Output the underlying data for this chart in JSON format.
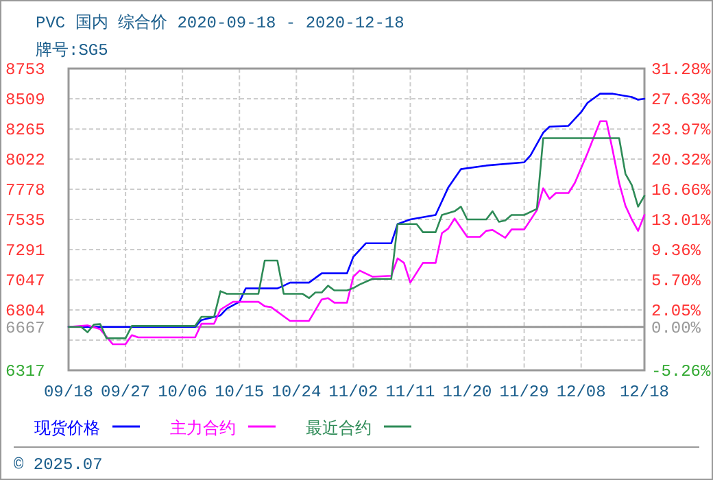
{
  "chart_data": {
    "type": "line",
    "title": "PVC 国内 综合价 2020-09-18 - 2020-12-18",
    "subtitle": "牌号:SG5",
    "xlim": [
      "2020-09-18",
      "2020-12-18"
    ],
    "xticks": [
      {
        "value": "2020-09-18",
        "label": "09/18"
      },
      {
        "value": "2020-09-27",
        "label": "09/27"
      },
      {
        "value": "2020-10-06",
        "label": "10/06"
      },
      {
        "value": "2020-10-15",
        "label": "10/15"
      },
      {
        "value": "2020-10-24",
        "label": "10/24"
      },
      {
        "value": "2020-11-02",
        "label": "11/02"
      },
      {
        "value": "2020-11-11",
        "label": "11/11"
      },
      {
        "value": "2020-11-20",
        "label": "11/20"
      },
      {
        "value": "2020-11-29",
        "label": "11/29"
      },
      {
        "value": "2020-12-08",
        "label": "12/08"
      },
      {
        "value": "2020-12-18",
        "label": "12/18"
      }
    ],
    "ylim": [
      6317,
      8753
    ],
    "yticks": [
      6317,
      {
        "value": 6560,
        "label": null
      },
      6667,
      6804,
      7047,
      7291,
      7535,
      7778,
      8022,
      8265,
      8509,
      8753
    ],
    "y2lim": [
      -5.26,
      31.28
    ],
    "y2ticks": [
      {
        "value": -5.26,
        "label": "-5.26%"
      },
      {
        "value": 0,
        "label": "0.00%"
      },
      {
        "value": 2.05,
        "label": "2.05%"
      },
      {
        "value": 5.7,
        "label": "5.70%"
      },
      {
        "value": 9.36,
        "label": "9.36%"
      },
      {
        "value": 13.01,
        "label": "13.01%"
      },
      {
        "value": 16.66,
        "label": "16.66%"
      },
      {
        "value": 20.32,
        "label": "20.32%"
      },
      {
        "value": 23.97,
        "label": "23.97%"
      },
      {
        "value": 27.63,
        "label": "27.63%"
      },
      {
        "value": 31.28,
        "label": "31.28%"
      }
    ],
    "ref_lines": [
      {
        "axis": "y",
        "value": 6667,
        "color": "#999999",
        "line_style": "solid"
      }
    ],
    "grid": true,
    "legend": "bottom",
    "series": [
      {
        "name": "现货价格",
        "color": "#0000ff",
        "x": [
          "2020-09-18",
          "2020-10-08",
          "2020-10-09",
          "2020-10-12",
          "2020-10-13",
          "2020-10-15",
          "2020-10-16",
          "2020-10-21",
          "2020-10-22",
          "2020-10-23",
          "2020-10-26",
          "2020-10-28",
          "2020-11-01",
          "2020-11-02",
          "2020-11-04",
          "2020-11-08",
          "2020-11-09",
          "2020-11-11",
          "2020-11-15",
          "2020-11-16",
          "2020-11-17",
          "2020-11-18",
          "2020-11-19",
          "2020-11-23",
          "2020-11-29",
          "2020-11-30",
          "2020-12-02",
          "2020-12-03",
          "2020-12-06",
          "2020-12-08",
          "2020-12-09",
          "2020-12-11",
          "2020-12-13",
          "2020-12-16",
          "2020-12-17",
          "2020-12-18"
        ],
        "values": [
          6667,
          6667,
          6723,
          6760,
          6815,
          6870,
          6978,
          6978,
          7000,
          7025,
          7025,
          7100,
          7100,
          7233,
          7343,
          7343,
          7498,
          7535,
          7571,
          7682,
          7793,
          7867,
          7941,
          7970,
          7996,
          8052,
          8235,
          8284,
          8291,
          8402,
          8476,
          8550,
          8550,
          8523,
          8501,
          8509
        ]
      },
      {
        "name": "主力合约",
        "color": "#ff00ff",
        "x": [
          "2020-09-18",
          "2020-09-21",
          "2020-09-23",
          "2020-09-25",
          "2020-09-27",
          "2020-09-28",
          "2020-09-29",
          "2020-10-08",
          "2020-10-09",
          "2020-10-11",
          "2020-10-12",
          "2020-10-14",
          "2020-10-18",
          "2020-10-19",
          "2020-10-20",
          "2020-10-23",
          "2020-10-26",
          "2020-10-28",
          "2020-10-29",
          "2020-10-30",
          "2020-11-01",
          "2020-11-02",
          "2020-11-03",
          "2020-11-05",
          "2020-11-08",
          "2020-11-09",
          "2020-11-10",
          "2020-11-11",
          "2020-11-13",
          "2020-11-15",
          "2020-11-16",
          "2020-11-17",
          "2020-11-18",
          "2020-11-20",
          "2020-11-22",
          "2020-11-23",
          "2020-11-24",
          "2020-11-26",
          "2020-11-27",
          "2020-11-29",
          "2020-12-01",
          "2020-12-02",
          "2020-12-03",
          "2020-12-04",
          "2020-12-06",
          "2020-12-07",
          "2020-12-09",
          "2020-12-11",
          "2020-12-12",
          "2020-12-13",
          "2020-12-14",
          "2020-12-15",
          "2020-12-16",
          "2020-12-17",
          "2020-12-18"
        ],
        "values": [
          6667,
          6679,
          6649,
          6527,
          6527,
          6601,
          6583,
          6583,
          6693,
          6693,
          6807,
          6870,
          6870,
          6834,
          6827,
          6716,
          6716,
          6889,
          6900,
          6863,
          6863,
          7073,
          7122,
          7073,
          7080,
          7221,
          7184,
          7025,
          7184,
          7184,
          7424,
          7461,
          7542,
          7394,
          7394,
          7443,
          7450,
          7387,
          7454,
          7454,
          7609,
          7786,
          7701,
          7748,
          7748,
          7830,
          8069,
          8328,
          8328,
          8088,
          7830,
          7645,
          7535,
          7443,
          7571
        ]
      },
      {
        "name": "最近合约",
        "color": "#2e8b57",
        "x": [
          "2020-09-18",
          "2020-09-20",
          "2020-09-21",
          "2020-09-22",
          "2020-09-23",
          "2020-09-24",
          "2020-09-27",
          "2020-09-28",
          "2020-10-08",
          "2020-10-09",
          "2020-10-11",
          "2020-10-12",
          "2020-10-13",
          "2020-10-18",
          "2020-10-19",
          "2020-10-21",
          "2020-10-22",
          "2020-10-25",
          "2020-10-26",
          "2020-10-27",
          "2020-10-28",
          "2020-10-29",
          "2020-10-30",
          "2020-11-01",
          "2020-11-02",
          "2020-11-03",
          "2020-11-05",
          "2020-11-08",
          "2020-11-09",
          "2020-11-12",
          "2020-11-13",
          "2020-11-15",
          "2020-11-16",
          "2020-11-18",
          "2020-11-19",
          "2020-11-20",
          "2020-11-23",
          "2020-11-24",
          "2020-11-25",
          "2020-11-26",
          "2020-11-27",
          "2020-11-29",
          "2020-12-01",
          "2020-12-02",
          "2020-12-14",
          "2020-12-15",
          "2020-12-16",
          "2020-12-17",
          "2020-12-18"
        ],
        "values": [
          6667,
          6667,
          6624,
          6686,
          6690,
          6575,
          6575,
          6675,
          6675,
          6749,
          6749,
          6956,
          6934,
          6934,
          7203,
          7203,
          6934,
          6934,
          6900,
          6945,
          6945,
          7000,
          6962,
          6962,
          6981,
          7010,
          7055,
          7055,
          7498,
          7498,
          7432,
          7432,
          7571,
          7601,
          7638,
          7535,
          7535,
          7601,
          7516,
          7527,
          7571,
          7571,
          7620,
          8191,
          8191,
          7903,
          7812,
          7638,
          7726
        ]
      }
    ],
    "annotations": [
      "© 2025.07"
    ]
  }
}
